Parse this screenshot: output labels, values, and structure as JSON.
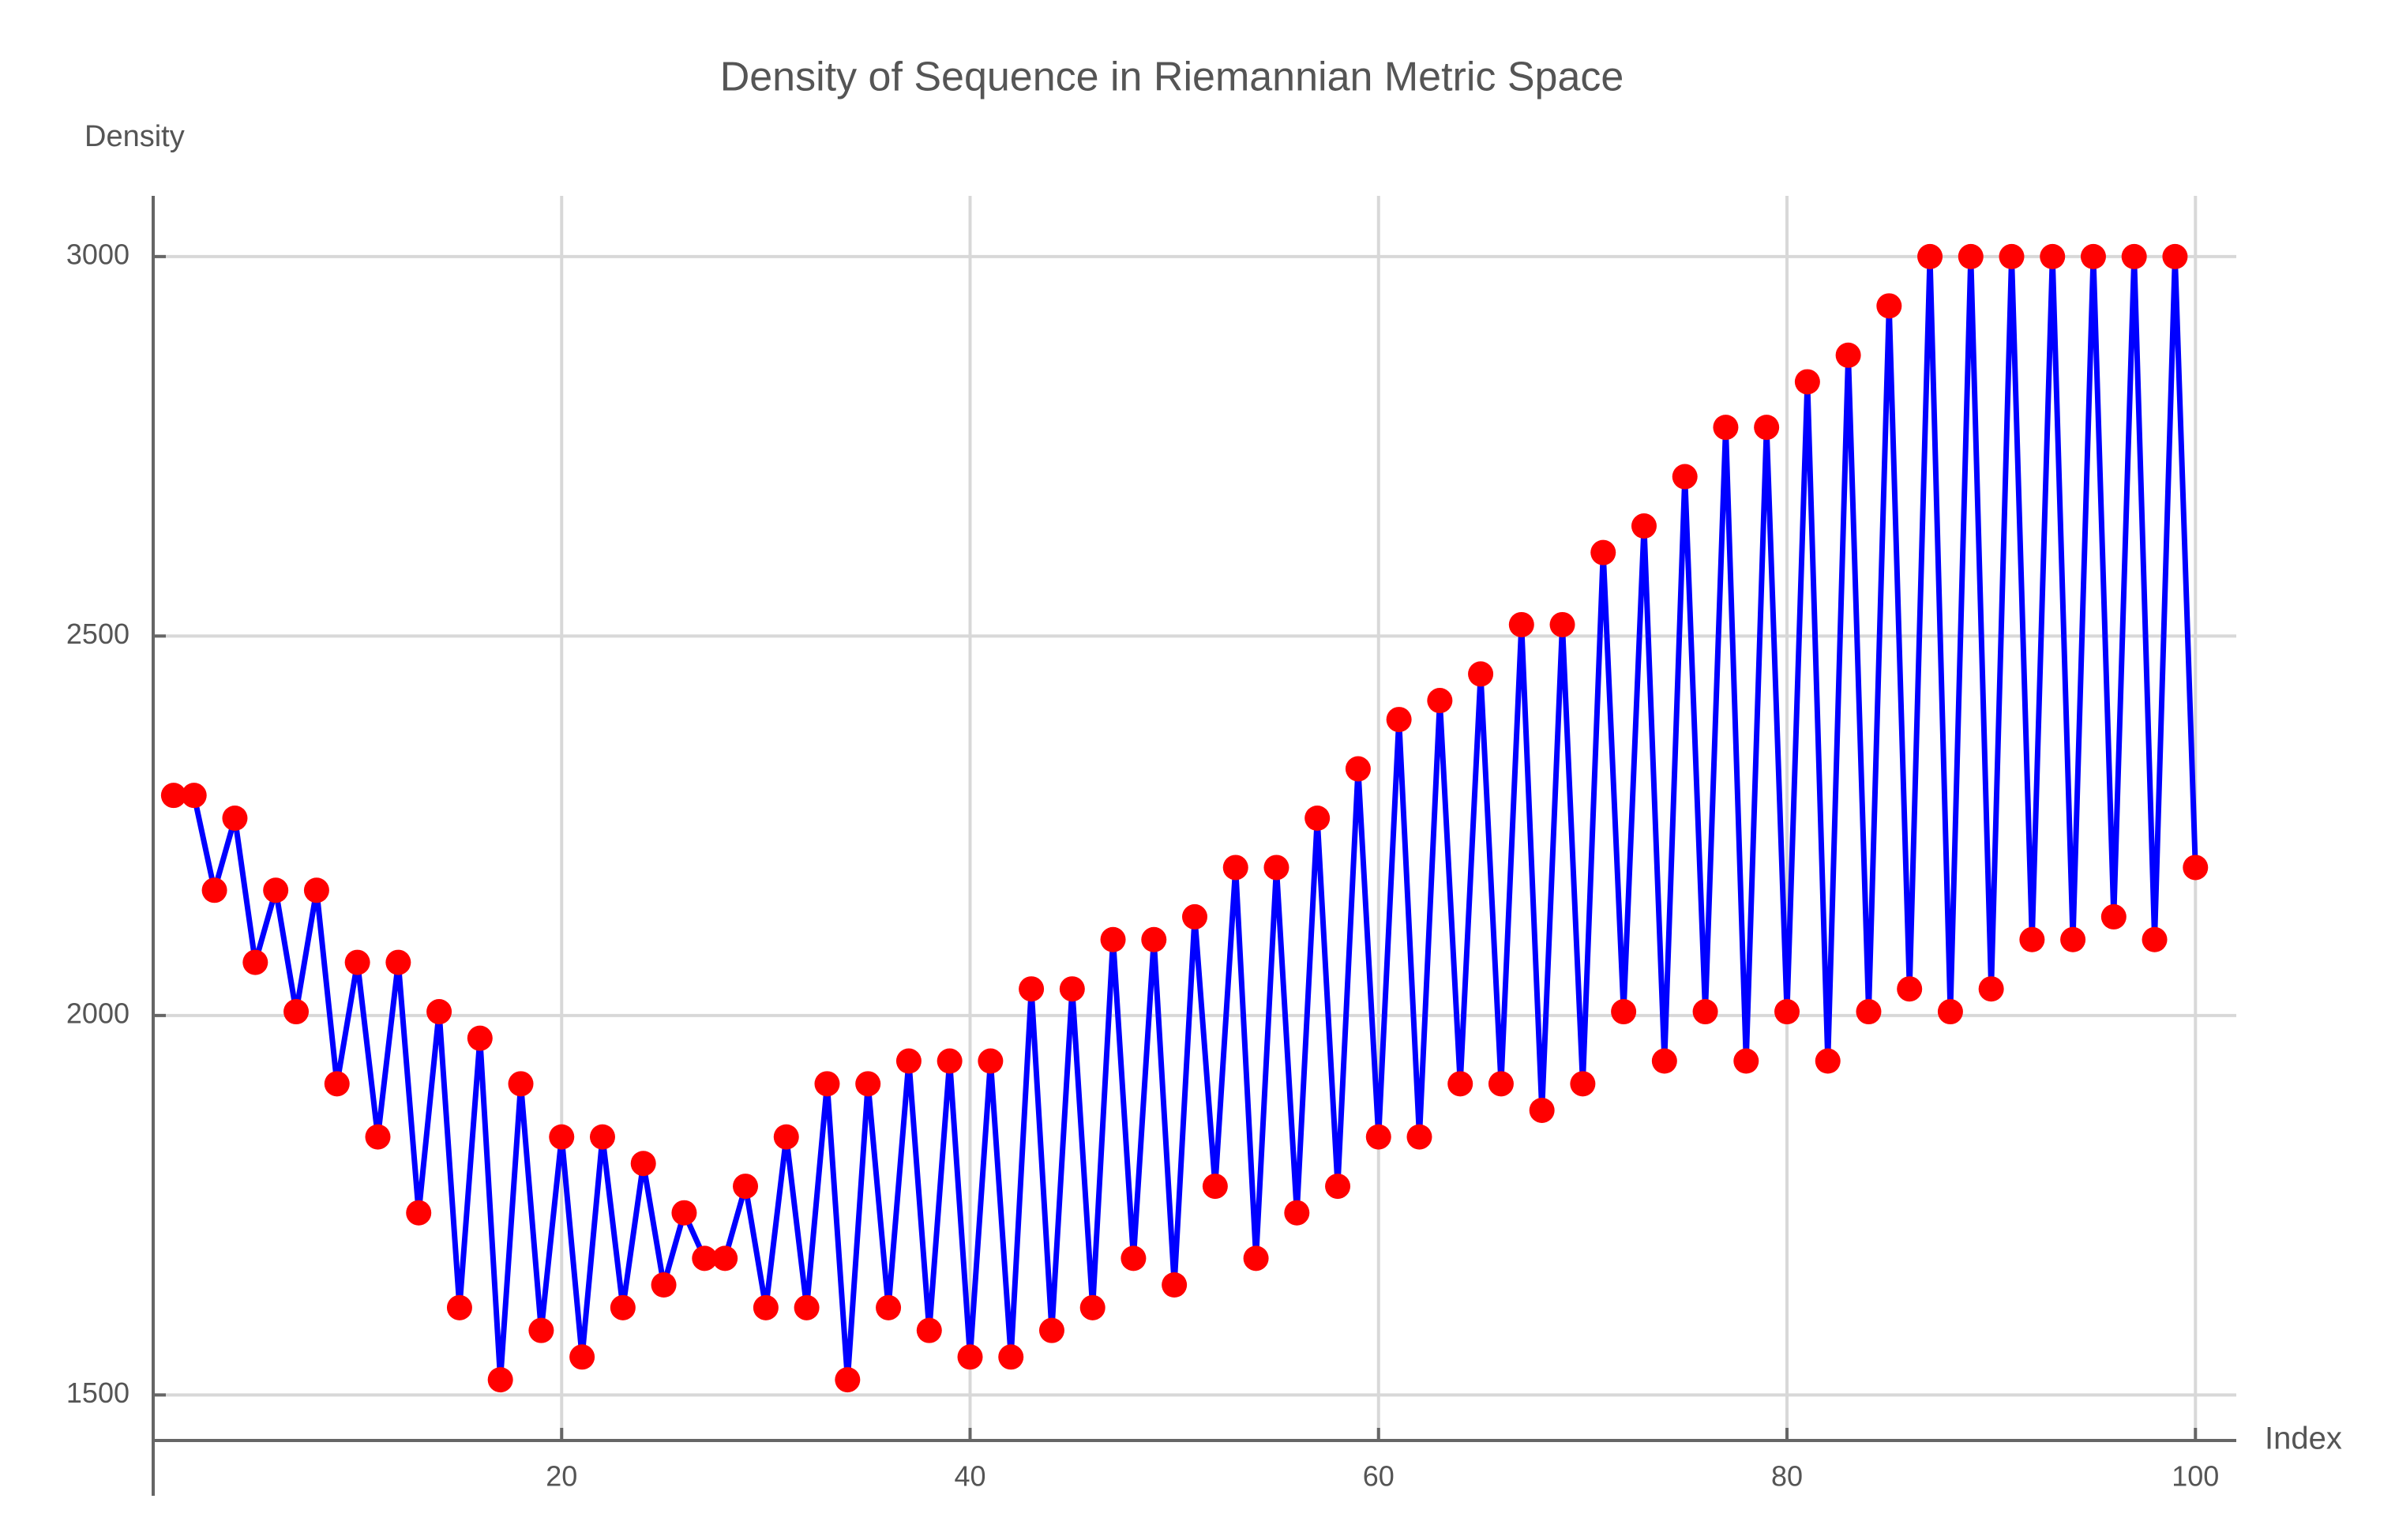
{
  "chart_data": {
    "type": "line",
    "title": "Density of Sequence in Riemannian Metric Space",
    "x_label": "Index",
    "y_label": "Density",
    "x": [
      1,
      2,
      3,
      4,
      5,
      6,
      7,
      8,
      9,
      10,
      11,
      12,
      13,
      14,
      15,
      16,
      17,
      18,
      19,
      20,
      21,
      22,
      23,
      24,
      25,
      26,
      27,
      28,
      29,
      30,
      31,
      32,
      33,
      34,
      35,
      36,
      37,
      38,
      39,
      40,
      41,
      42,
      43,
      44,
      45,
      46,
      47,
      48,
      49,
      50,
      51,
      52,
      53,
      54,
      55,
      56,
      57,
      58,
      59,
      60,
      61,
      62,
      63,
      64,
      65,
      66,
      67,
      68,
      69,
      70,
      71,
      72,
      73,
      74,
      75,
      76,
      77,
      78,
      79,
      80,
      81,
      82,
      83,
      84,
      85,
      86,
      87,
      88,
      89,
      90,
      91,
      92,
      93,
      94,
      95,
      96,
      97,
      98,
      99,
      100
    ],
    "series": [
      {
        "name": "Density",
        "color": "#0000ff",
        "marker_color": "#ff0000",
        "values": [
          2290,
          2290,
          2165,
          2260,
          2070,
          2165,
          2005,
          2165,
          1910,
          2070,
          1840,
          2070,
          1740,
          2005,
          1615,
          1970,
          1520,
          1910,
          1585,
          1840,
          1550,
          1840,
          1615,
          1805,
          1645,
          1740,
          1680,
          1680,
          1775,
          1615,
          1840,
          1615,
          1910,
          1520,
          1910,
          1615,
          1940,
          1585,
          1940,
          1550,
          1940,
          1550,
          2035,
          1585,
          2035,
          1615,
          2100,
          1680,
          2100,
          1645,
          2130,
          1775,
          2195,
          1680,
          2195,
          1740,
          2260,
          1775,
          2325,
          1840,
          2390,
          1840,
          2415,
          1910,
          2450,
          1910,
          2515,
          1875,
          2515,
          1910,
          2610,
          2005,
          2645,
          1940,
          2710,
          2005,
          2775,
          1940,
          2775,
          2005,
          2835,
          1940,
          2870,
          2005,
          2935,
          2035,
          3000,
          2005,
          3000,
          2035,
          3000,
          2100,
          3000,
          2100,
          3000,
          2130,
          3000,
          2100,
          3000,
          2195
        ]
      }
    ],
    "xlim": [
      0,
      102
    ],
    "ylim": [
      1440,
      3080
    ],
    "xticks": [
      20,
      40,
      60,
      80,
      100
    ],
    "yticks": [
      1500,
      2000,
      2500,
      3000
    ],
    "grid": true
  }
}
